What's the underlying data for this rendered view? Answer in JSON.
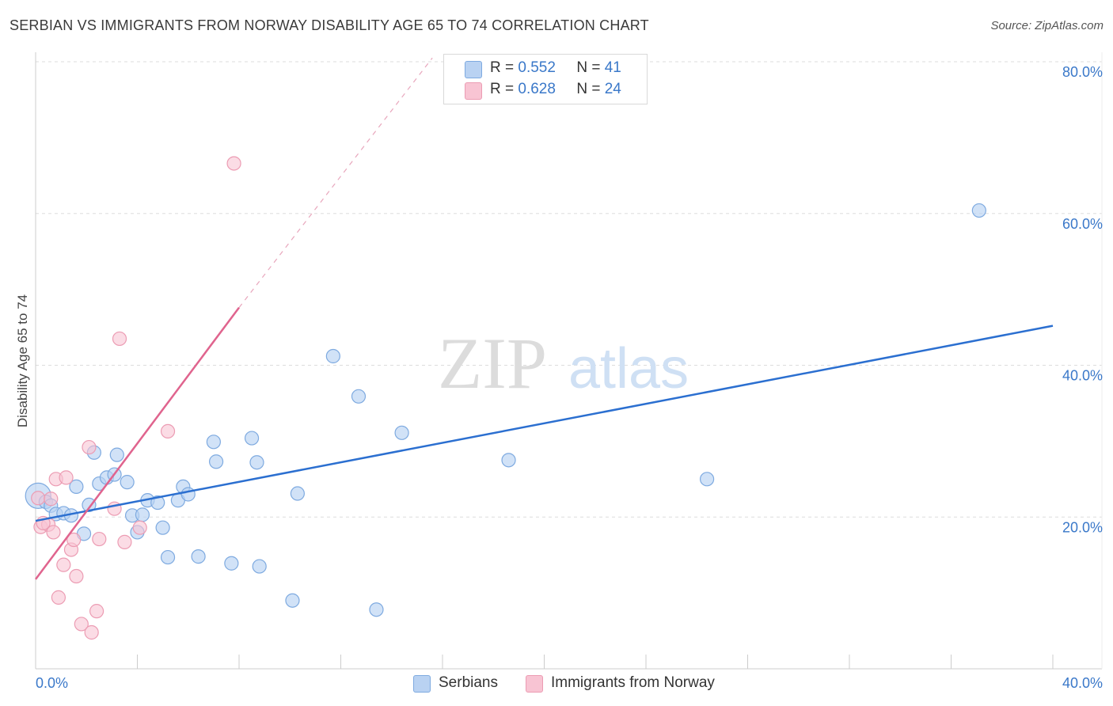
{
  "header": {
    "title": "SERBIAN VS IMMIGRANTS FROM NORWAY DISABILITY AGE 65 TO 74 CORRELATION CHART",
    "source": "Source: ZipAtlas.com"
  },
  "watermark": {
    "zip": "ZIP",
    "atlas": "atlas"
  },
  "legend_top": [
    {
      "r_label": "R = ",
      "r_value": "0.552",
      "n_label": "N = ",
      "n_value": "41"
    },
    {
      "r_label": "R = ",
      "r_value": "0.628",
      "n_label": "N = ",
      "n_value": "24"
    }
  ],
  "legend_bottom": [
    {
      "label": "Serbians"
    },
    {
      "label": "Immigrants from Norway"
    }
  ],
  "colors": {
    "serbians_fill": "#b9d2f2",
    "serbians_stroke": "#7eaae0",
    "serbians_line": "#2b6fd0",
    "norway_fill": "#f8c4d3",
    "norway_stroke": "#ec9cb3",
    "norway_line": "#e0648e",
    "axis_text": "#3a78c9",
    "grid": "#dddddd"
  },
  "chart_data": {
    "type": "scatter",
    "title": "SERBIAN VS IMMIGRANTS FROM NORWAY DISABILITY AGE 65 TO 74 CORRELATION CHART",
    "xlabel": "",
    "ylabel": "Disability Age 65 to 74",
    "xlim": [
      0,
      40
    ],
    "ylim": [
      0,
      80
    ],
    "x_tick_labels": [
      "0.0%",
      "40.0%"
    ],
    "y_ticks": [
      20,
      40,
      60,
      80
    ],
    "y_tick_labels": [
      "20.0%",
      "40.0%",
      "60.0%",
      "80.0%"
    ],
    "grid": true,
    "series": [
      {
        "name": "Serbians",
        "r": 0.552,
        "n": 41,
        "trend": {
          "x0": 0,
          "y0": 19.5,
          "x1": 40,
          "y1": 45.2
        },
        "points": [
          [
            0.1,
            22.8
          ],
          [
            0.4,
            22.0
          ],
          [
            0.6,
            21.5
          ],
          [
            0.8,
            20.4
          ],
          [
            1.1,
            20.5
          ],
          [
            1.4,
            20.2
          ],
          [
            1.6,
            24.0
          ],
          [
            1.9,
            17.8
          ],
          [
            2.1,
            21.6
          ],
          [
            2.3,
            28.5
          ],
          [
            2.5,
            24.4
          ],
          [
            2.8,
            25.2
          ],
          [
            3.1,
            25.6
          ],
          [
            3.2,
            28.2
          ],
          [
            3.6,
            24.6
          ],
          [
            3.8,
            20.2
          ],
          [
            4.0,
            18.0
          ],
          [
            4.2,
            20.3
          ],
          [
            4.4,
            22.2
          ],
          [
            4.8,
            21.9
          ],
          [
            5.0,
            18.6
          ],
          [
            5.2,
            14.7
          ],
          [
            5.6,
            22.2
          ],
          [
            5.8,
            24.0
          ],
          [
            6.0,
            23.0
          ],
          [
            6.4,
            14.8
          ],
          [
            7.0,
            29.9
          ],
          [
            7.1,
            27.3
          ],
          [
            7.7,
            13.9
          ],
          [
            8.5,
            30.4
          ],
          [
            8.7,
            27.2
          ],
          [
            8.8,
            13.5
          ],
          [
            10.1,
            9.0
          ],
          [
            10.3,
            23.1
          ],
          [
            11.7,
            41.2
          ],
          [
            12.7,
            35.9
          ],
          [
            13.4,
            7.8
          ],
          [
            14.4,
            31.1
          ],
          [
            18.6,
            27.5
          ],
          [
            26.4,
            25.0
          ],
          [
            37.1,
            60.4
          ]
        ]
      },
      {
        "name": "Immigrants from Norway",
        "r": 0.628,
        "n": 24,
        "trend": {
          "x0": 0,
          "y0": 11.8,
          "x1": 8.0,
          "y1": 47.6,
          "dash_x1": 15.6,
          "dash_y1": 80.5
        },
        "points": [
          [
            0.1,
            22.5
          ],
          [
            0.2,
            18.7
          ],
          [
            0.5,
            19.0
          ],
          [
            0.6,
            22.4
          ],
          [
            0.7,
            18.0
          ],
          [
            0.8,
            25.0
          ],
          [
            0.9,
            9.4
          ],
          [
            1.1,
            13.7
          ],
          [
            1.2,
            25.2
          ],
          [
            1.4,
            15.7
          ],
          [
            1.5,
            17.0
          ],
          [
            1.6,
            12.2
          ],
          [
            1.8,
            5.9
          ],
          [
            2.1,
            29.2
          ],
          [
            2.2,
            4.8
          ],
          [
            2.4,
            7.6
          ],
          [
            2.5,
            17.1
          ],
          [
            3.1,
            21.1
          ],
          [
            3.3,
            43.5
          ],
          [
            3.5,
            16.7
          ],
          [
            4.1,
            18.6
          ],
          [
            5.2,
            31.3
          ],
          [
            7.8,
            66.6
          ],
          [
            0.3,
            19.2
          ]
        ]
      }
    ]
  }
}
